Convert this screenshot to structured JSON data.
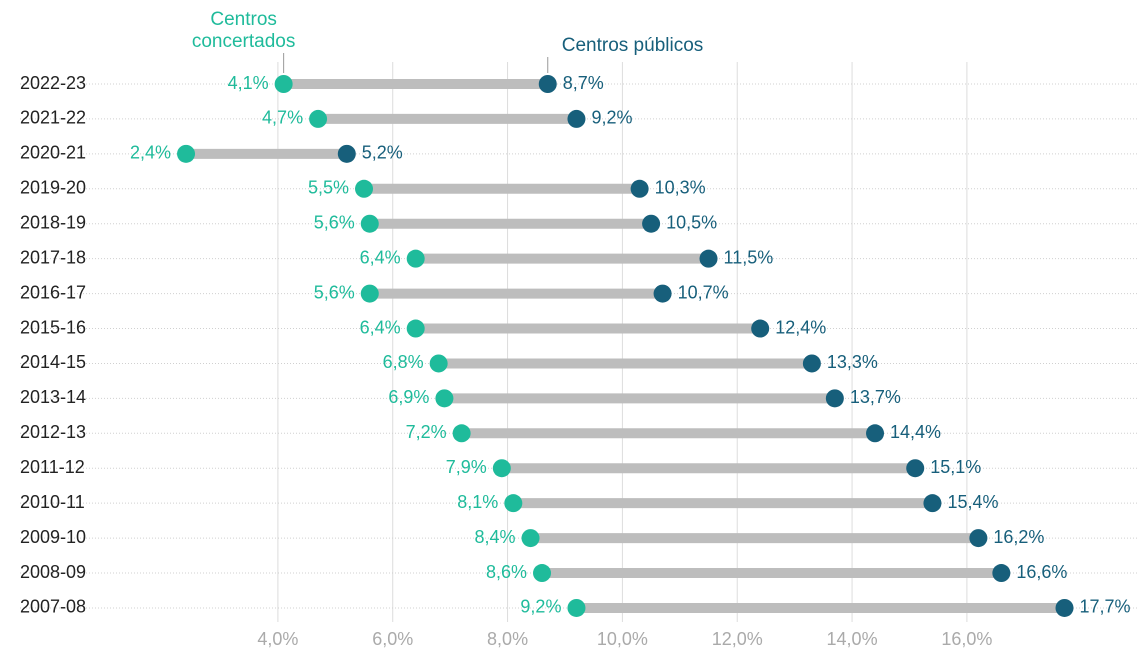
{
  "chart_data": {
    "type": "dumbbell",
    "categories": [
      "2022-23",
      "2021-22",
      "2020-21",
      "2019-20",
      "2018-19",
      "2017-18",
      "2016-17",
      "2015-16",
      "2014-15",
      "2013-14",
      "2012-13",
      "2011-12",
      "2010-11",
      "2009-10",
      "2008-09",
      "2007-08"
    ],
    "series": [
      {
        "name": "Centros concertados",
        "color": "#1fbb9b",
        "values": [
          4.1,
          4.7,
          2.4,
          5.5,
          5.6,
          6.4,
          5.6,
          6.4,
          6.8,
          6.9,
          7.2,
          7.9,
          8.1,
          8.4,
          8.6,
          9.2
        ],
        "value_labels": [
          "4,1%",
          "4,7%",
          "2,4%",
          "5,5%",
          "5,6%",
          "6,4%",
          "5,6%",
          "6,4%",
          "6,8%",
          "6,9%",
          "7,2%",
          "7,9%",
          "8,1%",
          "8,4%",
          "8,6%",
          "9,2%"
        ]
      },
      {
        "name": "Centros públicos",
        "color": "#175f7b",
        "values": [
          8.7,
          9.2,
          5.2,
          10.3,
          10.5,
          11.5,
          10.7,
          12.4,
          13.3,
          13.7,
          14.4,
          15.1,
          15.4,
          16.2,
          16.6,
          17.7
        ],
        "value_labels": [
          "8,7%",
          "9,2%",
          "5,2%",
          "10,3%",
          "10,5%",
          "11,5%",
          "10,7%",
          "12,4%",
          "13,3%",
          "13,7%",
          "14,4%",
          "15,1%",
          "15,4%",
          "16,2%",
          "16,6%",
          "17,7%"
        ]
      }
    ],
    "xlim": [
      1.25,
      18.98
    ],
    "xticks": [
      {
        "value": 4,
        "label": "4,0%"
      },
      {
        "value": 6,
        "label": "6,0%"
      },
      {
        "value": 8,
        "label": "8,0%"
      },
      {
        "value": 10,
        "label": "10,0%"
      },
      {
        "value": 12,
        "label": "12,0%"
      },
      {
        "value": 14,
        "label": "14,0%"
      },
      {
        "value": 16,
        "label": "16,0%"
      }
    ],
    "grid": true
  }
}
